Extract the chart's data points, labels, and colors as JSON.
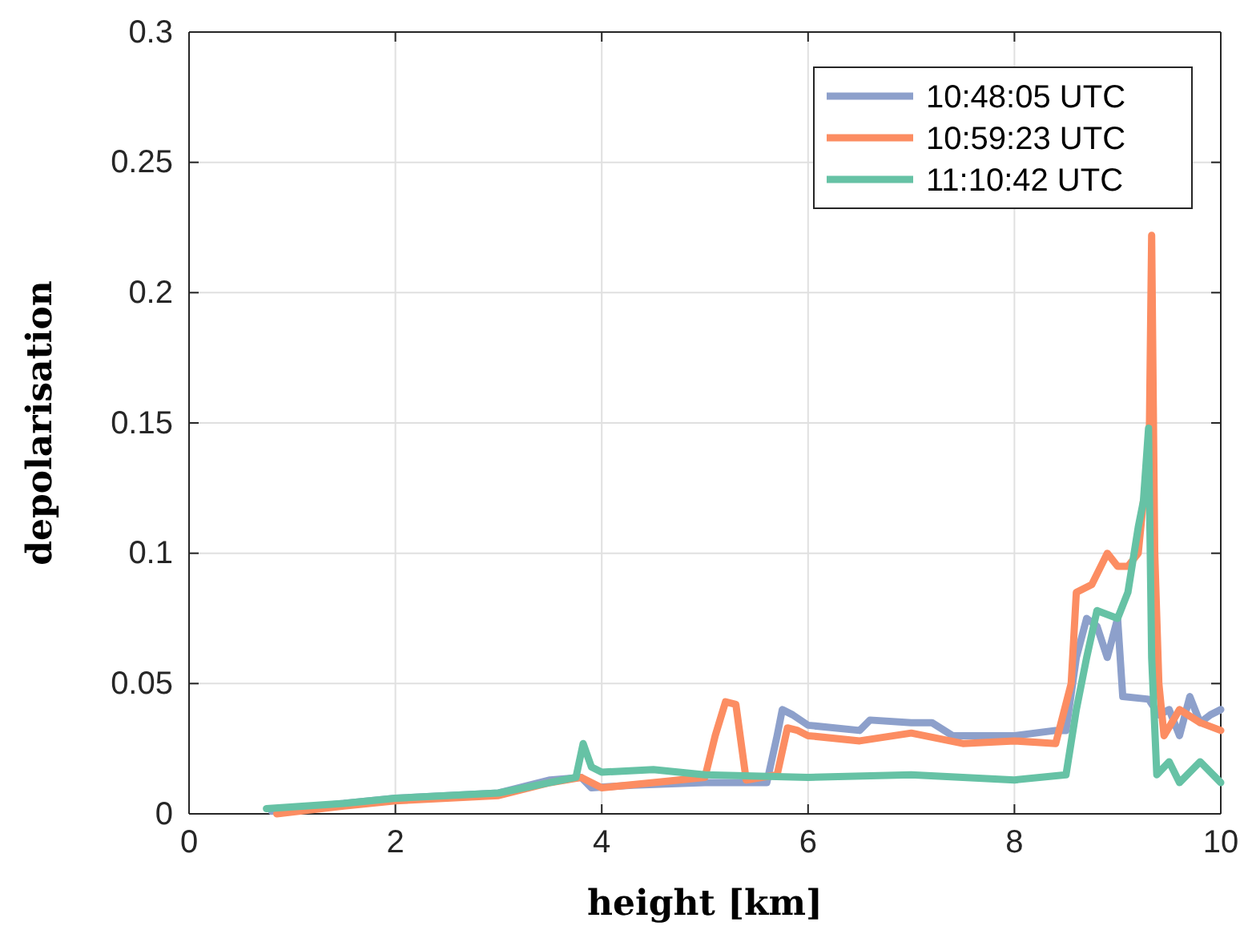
{
  "chart_data": {
    "type": "line",
    "xlabel": "height [km]",
    "ylabel": "depolarisation",
    "xlim": [
      0,
      10
    ],
    "ylim": [
      0,
      0.3
    ],
    "xticks": [
      0,
      2,
      4,
      6,
      8,
      10
    ],
    "yticks": [
      0,
      0.05,
      0.1,
      0.15,
      0.2,
      0.25,
      0.3
    ],
    "grid": true,
    "legend": "top right",
    "line_style": "solid",
    "marker": "none",
    "series": [
      {
        "name": "10:48:05 UTC",
        "color": "#8da0cb",
        "x": [
          0.8,
          1.5,
          2,
          2.5,
          3,
          3.3,
          3.5,
          3.8,
          3.9,
          4.3,
          5,
          5.6,
          5.7,
          5.75,
          5.85,
          6,
          6.5,
          6.6,
          7,
          7.2,
          7.4,
          8,
          8.4,
          8.5,
          8.6,
          8.7,
          8.8,
          8.9,
          9,
          9.05,
          9.3,
          9.4,
          9.5,
          9.6,
          9.7,
          9.8,
          9.9,
          10
        ],
        "values": [
          0.001,
          0.004,
          0.006,
          0.007,
          0.008,
          0.011,
          0.013,
          0.014,
          0.01,
          0.011,
          0.012,
          0.012,
          0.03,
          0.04,
          0.038,
          0.034,
          0.032,
          0.036,
          0.035,
          0.035,
          0.03,
          0.03,
          0.032,
          0.032,
          0.06,
          0.075,
          0.072,
          0.06,
          0.075,
          0.045,
          0.044,
          0.038,
          0.04,
          0.03,
          0.045,
          0.035,
          0.038,
          0.04
        ]
      },
      {
        "name": "10:59:23 UTC",
        "color": "#fc8d62",
        "x": [
          0.85,
          1.5,
          2,
          2.5,
          3,
          3.5,
          3.8,
          3.9,
          4,
          4.5,
          5,
          5.1,
          5.2,
          5.3,
          5.4,
          5.7,
          5.8,
          5.9,
          6,
          6.5,
          7,
          7.5,
          8,
          8.4,
          8.55,
          8.6,
          8.75,
          8.9,
          9,
          9.1,
          9.2,
          9.25,
          9.3,
          9.33,
          9.36,
          9.4,
          9.45,
          9.6,
          9.8,
          10
        ],
        "values": [
          0,
          0.003,
          0.005,
          0.006,
          0.007,
          0.012,
          0.014,
          0.012,
          0.01,
          0.012,
          0.014,
          0.03,
          0.043,
          0.042,
          0.013,
          0.015,
          0.033,
          0.032,
          0.03,
          0.028,
          0.031,
          0.027,
          0.028,
          0.027,
          0.05,
          0.085,
          0.088,
          0.1,
          0.095,
          0.095,
          0.1,
          0.12,
          0.12,
          0.222,
          0.1,
          0.05,
          0.03,
          0.04,
          0.035,
          0.032
        ]
      },
      {
        "name": "11:10:42 UTC",
        "color": "#66c2a5",
        "x": [
          0.75,
          1.5,
          2,
          2.5,
          3,
          3.5,
          3.75,
          3.82,
          3.9,
          4,
          4.5,
          5,
          6,
          7,
          8,
          8.5,
          8.6,
          8.7,
          8.8,
          9,
          9.1,
          9.2,
          9.25,
          9.3,
          9.33,
          9.38,
          9.5,
          9.6,
          9.8,
          10
        ],
        "values": [
          0.002,
          0.004,
          0.006,
          0.007,
          0.008,
          0.012,
          0.014,
          0.027,
          0.018,
          0.016,
          0.017,
          0.015,
          0.014,
          0.015,
          0.013,
          0.015,
          0.04,
          0.06,
          0.078,
          0.075,
          0.085,
          0.11,
          0.12,
          0.148,
          0.06,
          0.015,
          0.02,
          0.012,
          0.02,
          0.012
        ]
      }
    ]
  }
}
